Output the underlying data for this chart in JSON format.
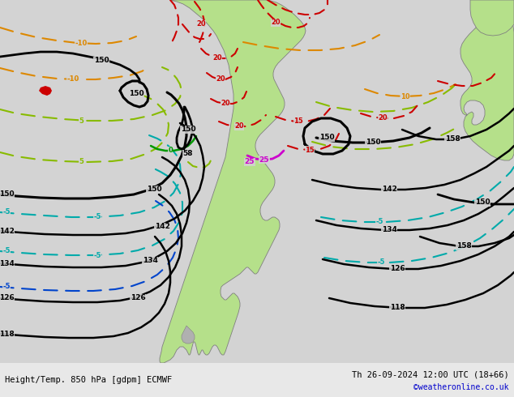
{
  "title_left": "Height/Temp. 850 hPa [gdpm] ECMWF",
  "title_right": "Th 26-09-2024 12:00 UTC (18+66)",
  "credit": "©weatheronline.co.uk",
  "bg_color": "#d3d3d3",
  "land_color": "#b5e08a",
  "border_color": "#808080",
  "hgt_color": "#000000",
  "t_red": "#cc0000",
  "t_orange": "#dd8800",
  "t_yellow_green": "#88bb00",
  "t_green": "#009900",
  "t_cyan": "#00aaaa",
  "t_blue": "#0044cc",
  "t_magenta": "#cc00cc",
  "footer_bg": "#e8e8e8",
  "credit_color": "#0000cc"
}
